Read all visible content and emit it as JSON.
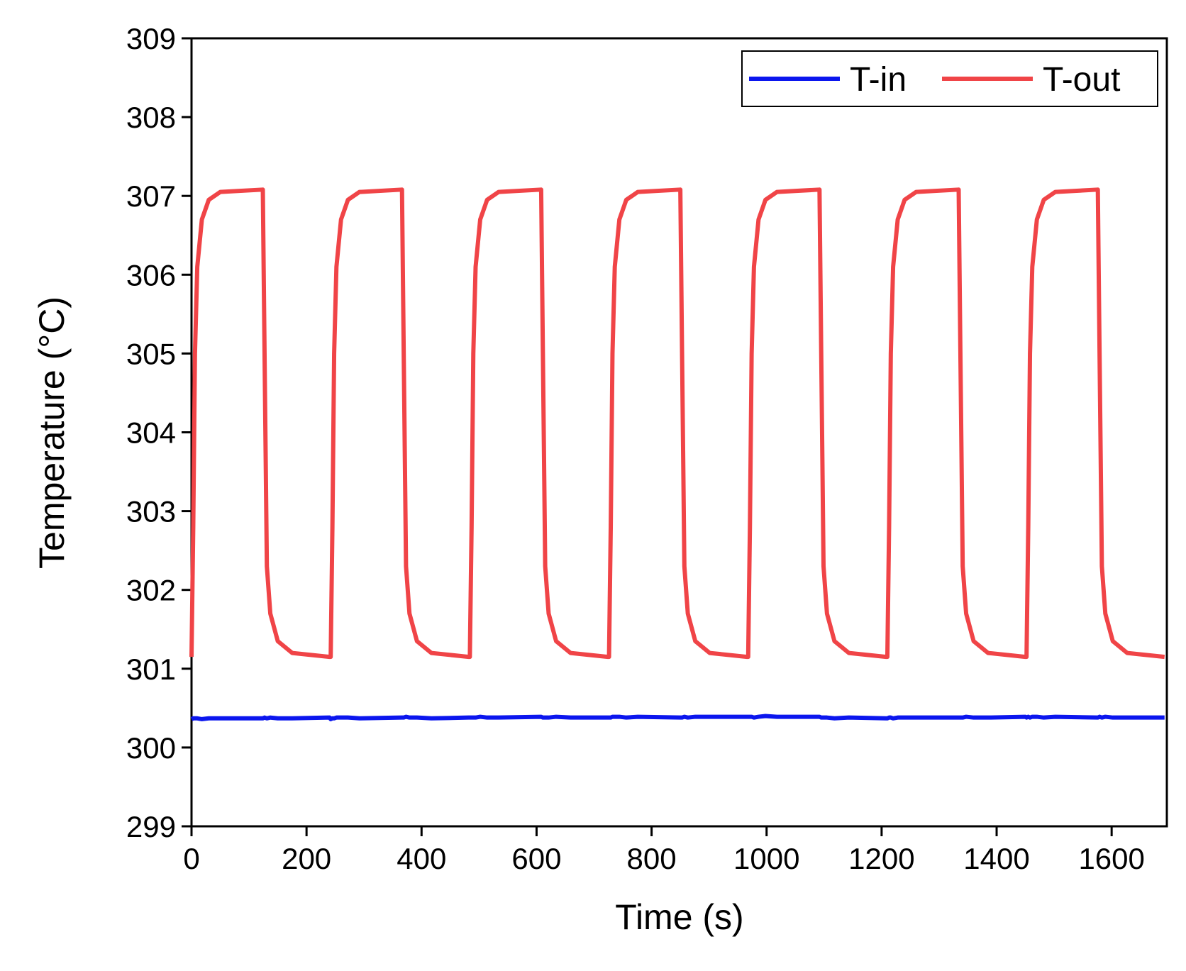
{
  "chart_data": {
    "type": "line",
    "x_label": "Time (s)",
    "y_label": "Temperature (°C)",
    "xlim": [
      0,
      1696
    ],
    "ylim": [
      299,
      309
    ],
    "xticks": [
      0,
      200,
      400,
      600,
      800,
      1000,
      1200,
      1400,
      1600
    ],
    "yticks": [
      299,
      300,
      301,
      302,
      303,
      304,
      305,
      306,
      307,
      308,
      309
    ],
    "legend": "upper right",
    "x": [
      0,
      3,
      6,
      10,
      18,
      30,
      50,
      124,
      127,
      131,
      137,
      150,
      175,
      240,
      242,
      245,
      248,
      252,
      260,
      272,
      292,
      366,
      369,
      373,
      379,
      392,
      417,
      482,
      484,
      487,
      490,
      494,
      502,
      514,
      534,
      608,
      611,
      615,
      621,
      634,
      659,
      724,
      726,
      729,
      732,
      736,
      744,
      756,
      776,
      850,
      853,
      857,
      863,
      876,
      901,
      966,
      968,
      971,
      974,
      978,
      986,
      998,
      1018,
      1092,
      1095,
      1099,
      1105,
      1118,
      1143,
      1208,
      1210,
      1213,
      1216,
      1220,
      1228,
      1240,
      1260,
      1334,
      1337,
      1341,
      1347,
      1360,
      1385,
      1450,
      1452,
      1455,
      1458,
      1462,
      1470,
      1482,
      1502,
      1576,
      1579,
      1583,
      1589,
      1602,
      1627,
      1692
    ],
    "series": [
      {
        "name": "T-in",
        "color": "#0b16ee",
        "values": [
          300.36,
          300.37,
          300.37,
          300.37,
          300.36,
          300.37,
          300.37,
          300.37,
          300.38,
          300.37,
          300.38,
          300.37,
          300.37,
          300.38,
          300.36,
          300.37,
          300.37,
          300.38,
          300.38,
          300.38,
          300.37,
          300.38,
          300.38,
          300.39,
          300.38,
          300.38,
          300.37,
          300.38,
          300.38,
          300.38,
          300.38,
          300.38,
          300.39,
          300.38,
          300.38,
          300.39,
          300.38,
          300.38,
          300.38,
          300.39,
          300.38,
          300.38,
          300.38,
          300.38,
          300.39,
          300.39,
          300.39,
          300.38,
          300.39,
          300.38,
          300.38,
          300.39,
          300.38,
          300.39,
          300.39,
          300.39,
          300.39,
          300.39,
          300.39,
          300.38,
          300.39,
          300.4,
          300.39,
          300.39,
          300.38,
          300.38,
          300.38,
          300.37,
          300.38,
          300.37,
          300.37,
          300.38,
          300.38,
          300.37,
          300.38,
          300.38,
          300.38,
          300.38,
          300.38,
          300.38,
          300.39,
          300.38,
          300.38,
          300.39,
          300.38,
          300.39,
          300.38,
          300.39,
          300.39,
          300.38,
          300.39,
          300.38,
          300.39,
          300.38,
          300.39,
          300.38,
          300.38,
          300.38
        ]
      },
      {
        "name": "T-out",
        "color": "#f04447",
        "values": [
          301.15,
          302.8,
          305.0,
          306.1,
          306.7,
          306.95,
          307.05,
          307.08,
          305.0,
          302.3,
          301.7,
          301.35,
          301.2,
          301.15,
          301.15,
          302.8,
          305.0,
          306.1,
          306.7,
          306.95,
          307.05,
          307.08,
          305.0,
          302.3,
          301.7,
          301.35,
          301.2,
          301.15,
          301.15,
          302.8,
          305.0,
          306.1,
          306.7,
          306.95,
          307.05,
          307.08,
          305.0,
          302.3,
          301.7,
          301.35,
          301.2,
          301.15,
          301.15,
          302.8,
          305.0,
          306.1,
          306.7,
          306.95,
          307.05,
          307.08,
          305.0,
          302.3,
          301.7,
          301.35,
          301.2,
          301.15,
          301.15,
          302.8,
          305.0,
          306.1,
          306.7,
          306.95,
          307.05,
          307.08,
          305.0,
          302.3,
          301.7,
          301.35,
          301.2,
          301.15,
          301.15,
          302.8,
          305.0,
          306.1,
          306.7,
          306.95,
          307.05,
          307.08,
          305.0,
          302.3,
          301.7,
          301.35,
          301.2,
          301.15,
          301.15,
          302.8,
          305.0,
          306.1,
          306.7,
          306.95,
          307.05,
          307.08,
          305.0,
          302.3,
          301.7,
          301.35,
          301.2,
          301.15
        ]
      }
    ]
  }
}
